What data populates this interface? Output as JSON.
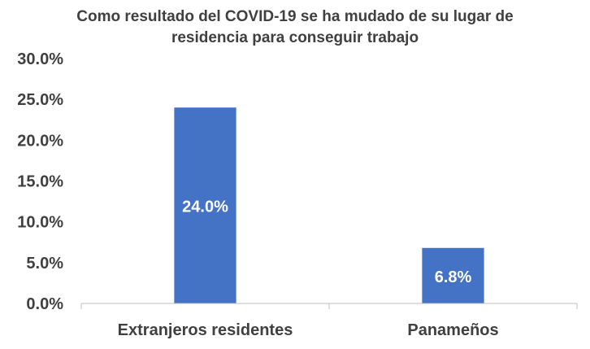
{
  "chart_data": {
    "type": "bar",
    "title_lines": [
      "Como resultado del COVID-19 se ha mudado de su lugar de",
      "residencia para conseguir trabajo"
    ],
    "categories": [
      "Extranjeros residentes",
      "Panameños"
    ],
    "values": [
      24.0,
      6.8
    ],
    "data_labels": [
      "24.0%",
      "6.8%"
    ],
    "ylim": [
      0,
      30
    ],
    "yticks": [
      0,
      5,
      10,
      15,
      20,
      25,
      30
    ],
    "ytick_labels": [
      "0.0%",
      "5.0%",
      "10.0%",
      "15.0%",
      "20.0%",
      "25.0%",
      "30.0%"
    ],
    "xlabel": "",
    "ylabel": "",
    "grid": false,
    "legend": false,
    "bar_color": "#4472C4",
    "axis_color": "#BFBFBF",
    "text_color": "#404040"
  }
}
